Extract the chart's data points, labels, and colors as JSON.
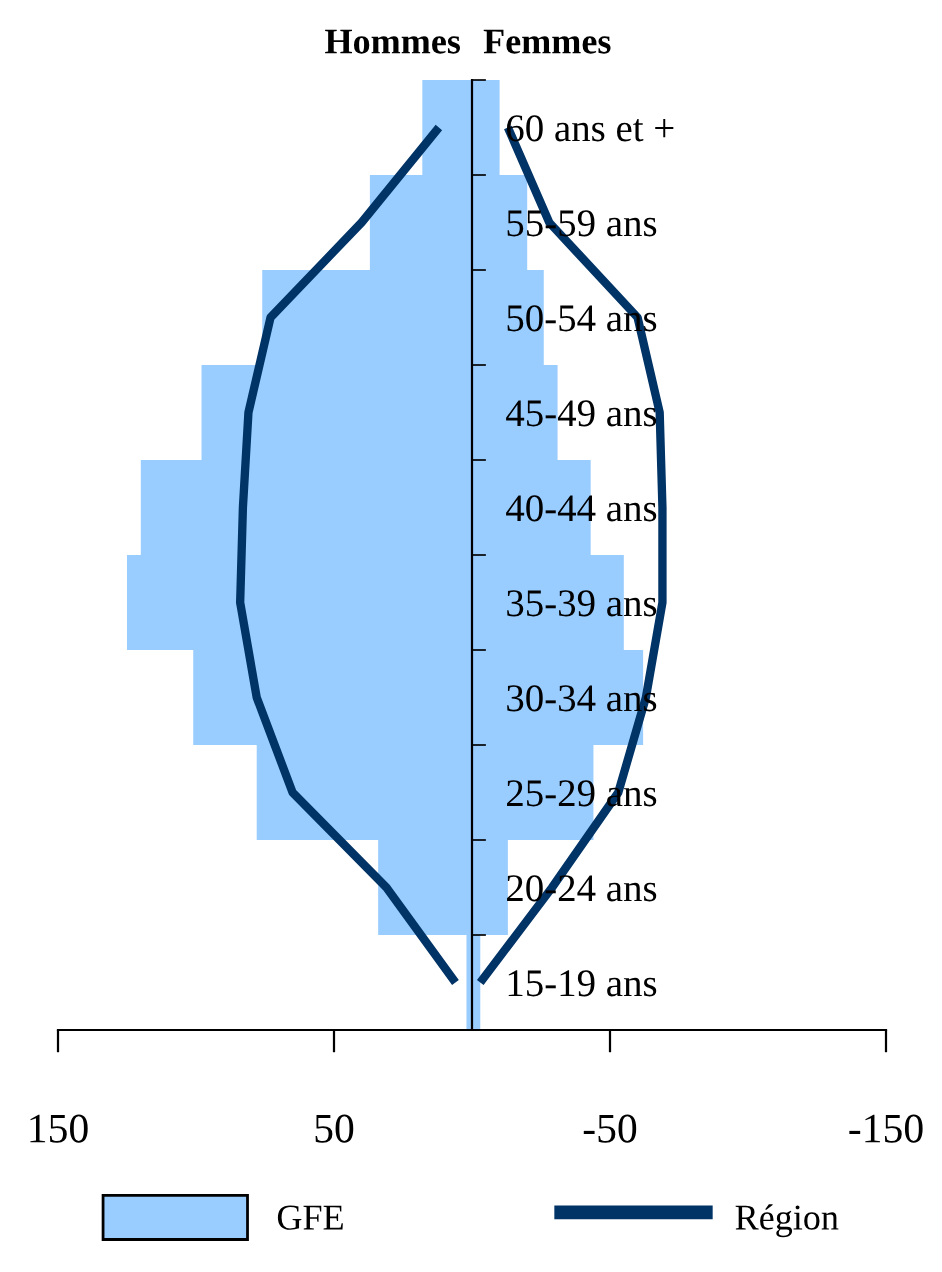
{
  "chart_data": {
    "type": "bar",
    "orientation": "horizontal",
    "stacked": true,
    "categories": [
      "60 ans et +",
      "55-59 ans",
      "50-54 ans",
      "45-49 ans",
      "40-44 ans",
      "35-39 ans",
      "30-34 ans",
      "25-29 ans",
      "20-24 ans",
      "15-19 ans"
    ],
    "series": [
      {
        "name": "GFE",
        "color": "#99ccff",
        "values": [
          18,
          37,
          76,
          98,
          120,
          125,
          101,
          78,
          34,
          2
        ]
      },
      {
        "color": "#99ccff",
        "values": [
          -10,
          -20,
          -26,
          -31,
          -43,
          -55,
          -62,
          -44,
          -13,
          -3
        ]
      },
      {
        "name": "Région",
        "type": "line",
        "color": "#003366",
        "values": [
          12,
          40,
          73,
          81,
          83,
          84,
          78,
          65,
          31,
          6
        ]
      },
      {
        "type": "line",
        "color": "#003366",
        "values": [
          -13,
          -28,
          -60,
          -68,
          -69,
          -69,
          -63,
          -53,
          -29,
          -3
        ]
      }
    ],
    "xlim": [
      150,
      -150
    ],
    "xticks": [
      150,
      50,
      -50,
      -150
    ],
    "annotations": [
      "Hommes",
      "Femmes"
    ],
    "legend": "bottom",
    "grid": false,
    "marker": "none",
    "line_style": "solid"
  }
}
